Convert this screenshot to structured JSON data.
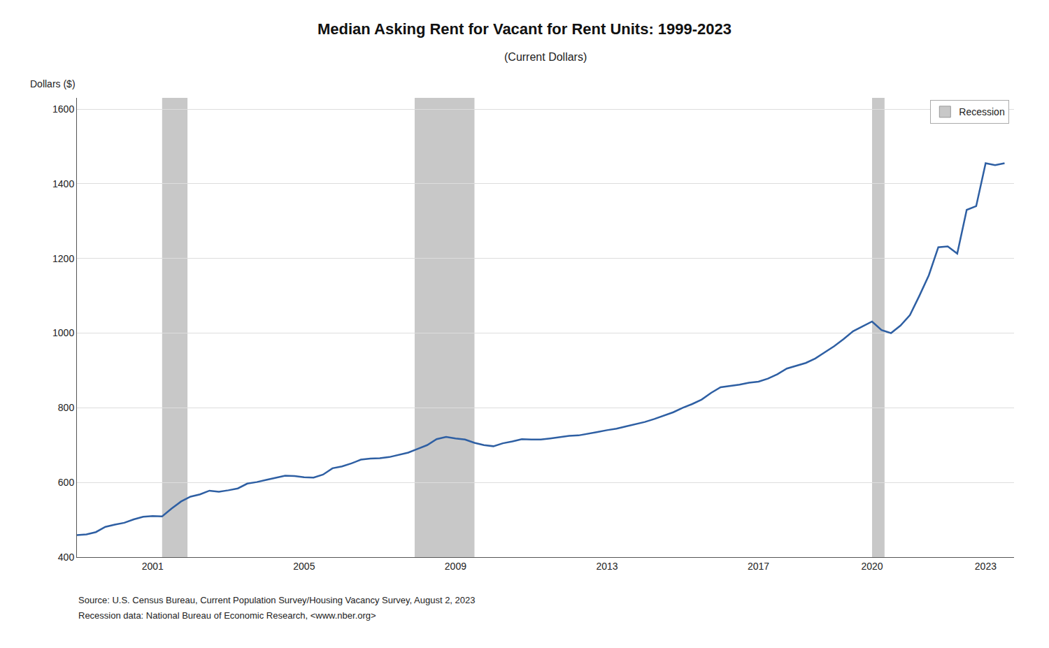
{
  "chart_data": {
    "type": "line",
    "title": "Median Asking Rent for Vacant for Rent Units: 1999-2023",
    "subtitle": "(Current Dollars)",
    "y_label": "Dollars ($)",
    "annotations": [
      "Source: U.S. Census Bureau, Current Population Survey/Housing Vacancy Survey, August 2, 2023",
      "Recession data: National Bureau of Economic Research, <www.nber.org>"
    ],
    "color": "#2E5FA3",
    "x": [
      1999.0,
      1999.25,
      1999.5,
      1999.75,
      2000.0,
      2000.25,
      2000.5,
      2000.75,
      2001.0,
      2001.25,
      2001.5,
      2001.75,
      2002.0,
      2002.25,
      2002.5,
      2002.75,
      2003.0,
      2003.25,
      2003.5,
      2003.75,
      2004.0,
      2004.25,
      2004.5,
      2004.75,
      2005.0,
      2005.25,
      2005.5,
      2005.75,
      2006.0,
      2006.25,
      2006.5,
      2006.75,
      2007.0,
      2007.25,
      2007.5,
      2007.75,
      2008.0,
      2008.25,
      2008.5,
      2008.75,
      2009.0,
      2009.25,
      2009.5,
      2009.75,
      2010.0,
      2010.25,
      2010.5,
      2010.75,
      2011.0,
      2011.25,
      2011.5,
      2011.75,
      2012.0,
      2012.25,
      2012.5,
      2012.75,
      2013.0,
      2013.25,
      2013.5,
      2013.75,
      2014.0,
      2014.25,
      2014.5,
      2014.75,
      2015.0,
      2015.25,
      2015.5,
      2015.75,
      2016.0,
      2016.25,
      2016.5,
      2016.75,
      2017.0,
      2017.25,
      2017.5,
      2017.75,
      2018.0,
      2018.25,
      2018.5,
      2018.75,
      2019.0,
      2019.25,
      2019.5,
      2019.75,
      2020.0,
      2020.25,
      2020.5,
      2020.75,
      2021.0,
      2021.25,
      2021.5,
      2021.75,
      2022.0,
      2022.25,
      2022.5,
      2022.75,
      2023.0,
      2023.25,
      2023.5
    ],
    "values": [
      459,
      461,
      467,
      481,
      487,
      492,
      501,
      508,
      510,
      509,
      530,
      549,
      562,
      568,
      578,
      575,
      579,
      584,
      597,
      601,
      607,
      612,
      618,
      617,
      614,
      613,
      621,
      638,
      643,
      651,
      661,
      664,
      665,
      668,
      674,
      680,
      690,
      700,
      716,
      722,
      718,
      715,
      706,
      700,
      697,
      705,
      710,
      716,
      715,
      715,
      718,
      722,
      725,
      726,
      730,
      735,
      740,
      744,
      750,
      756,
      762,
      770,
      779,
      788,
      800,
      810,
      822,
      840,
      855,
      858,
      862,
      867,
      870,
      878,
      890,
      905,
      912,
      920,
      932,
      948,
      965,
      984,
      1005,
      1018,
      1031,
      1008,
      1000,
      1020,
      1048,
      1100,
      1155,
      1230,
      1232,
      1213,
      1330,
      1340,
      1455,
      1450,
      1455
    ],
    "shaded_spans": {
      "name": "Recession",
      "color": "#C8C8C8",
      "spans": [
        {
          "start": 2001.25,
          "end": 2001.92
        },
        {
          "start": 2007.92,
          "end": 2009.5
        },
        {
          "start": 2020.0,
          "end": 2020.33
        }
      ]
    },
    "xlim": [
      1999.0,
      2023.75
    ],
    "ylim": [
      400,
      1630
    ],
    "xticks": [
      2001,
      2005,
      2009,
      2013,
      2017,
      2020,
      2023
    ],
    "yticks": [
      400,
      600,
      800,
      1000,
      1200,
      1400,
      1600
    ],
    "grid": true,
    "legend": "upper right"
  }
}
